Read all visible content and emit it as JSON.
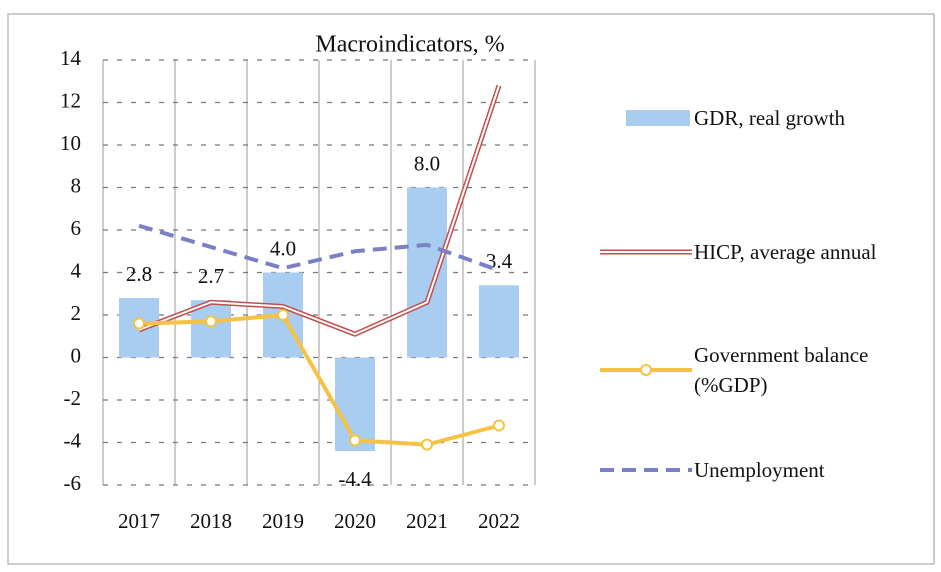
{
  "chart_data": {
    "type": "bar",
    "title": "Macroindicators, %",
    "categories": [
      "2017",
      "2018",
      "2019",
      "2020",
      "2021",
      "2022"
    ],
    "series": [
      {
        "name": "GDR, real growth",
        "type": "bar",
        "color": "#a9cdf0",
        "values": [
          2.8,
          2.7,
          4.0,
          -4.4,
          8.0,
          3.4
        ],
        "value_labels": [
          "2.8",
          "2.7",
          "4.0",
          "-4.4",
          "8.0",
          "3.4"
        ]
      },
      {
        "name": "HICP, average annual",
        "type": "line",
        "line_style": "double",
        "color": "#c0504d",
        "values": [
          1.3,
          2.6,
          2.4,
          1.1,
          2.6,
          12.8
        ]
      },
      {
        "name": "Government balance (%GDP)",
        "type": "line",
        "line_style": "markers",
        "color": "#f5c242",
        "values": [
          1.6,
          1.7,
          2.0,
          -3.9,
          -4.1,
          -3.2
        ]
      },
      {
        "name": "Unemployment",
        "type": "line",
        "line_style": "dashed",
        "color": "#7b7fc4",
        "values": [
          6.2,
          5.2,
          4.2,
          5.0,
          5.3,
          4.1
        ]
      }
    ],
    "ylim": [
      -6,
      14
    ],
    "yticks": [
      -6,
      -4,
      -2,
      0,
      2,
      4,
      6,
      8,
      10,
      12,
      14
    ],
    "grid": true,
    "legend": "right"
  }
}
